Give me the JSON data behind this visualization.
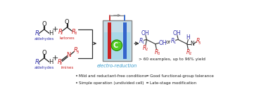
{
  "bg_color": "#ffffff",
  "bullet_color": "#707070",
  "bullet_items_left": [
    "Mild and reductant-free conditions",
    "Simple operation (undivided cell)"
  ],
  "bullet_items_right": [
    "Good functional-group tolerance",
    "Late-stage modification"
  ],
  "electro_label": "electro-reduction",
  "yield_text": "> 60 examples, up to 96% yield",
  "or_text": "or",
  "blue": "#3333aa",
  "red": "#cc2222",
  "electro_color": "#3399cc",
  "cell_blue": "#3366cc",
  "cell_red": "#cc2222",
  "cell_green": "#55cc22",
  "cell_liquid": "#aad8e8",
  "cell_body_fill": "#c5dde8",
  "cell_outline": "#888888",
  "arrow_color": "#333333",
  "blk": "#222222"
}
